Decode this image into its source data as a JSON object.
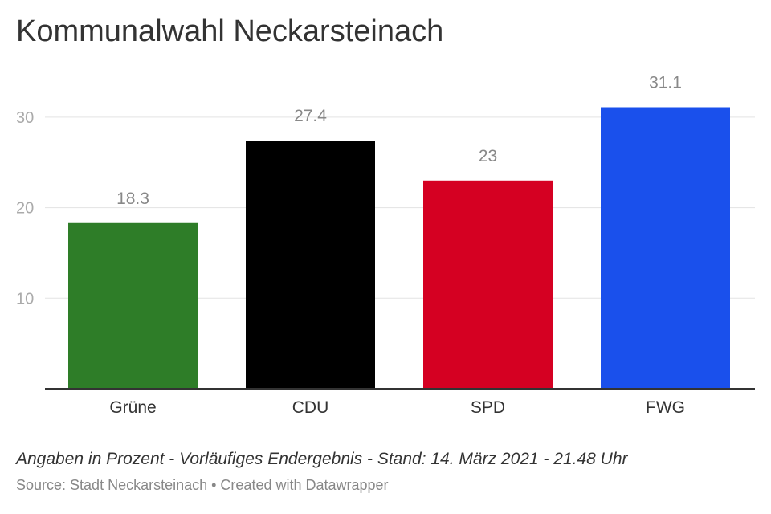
{
  "chart_data": {
    "type": "bar",
    "title": "Kommunalwahl Neckarsteinach",
    "categories": [
      "Grüne",
      "CDU",
      "SPD",
      "FWG"
    ],
    "values": [
      18.3,
      27.4,
      23,
      31.1
    ],
    "value_labels": [
      "18.3",
      "27.4",
      "23",
      "31.1"
    ],
    "colors": [
      "#2e7d28",
      "#000000",
      "#d50022",
      "#1a50ec"
    ],
    "yticks": [
      10,
      20,
      30
    ],
    "ylim": [
      0,
      33.6
    ],
    "grid": true,
    "notes": "Angaben in Prozent - Vorläufiges Endergebnis - Stand: 14. März 2021 - 21.48 Uhr",
    "source": "Source: Stadt Neckarsteinach • Created with Datawrapper"
  }
}
